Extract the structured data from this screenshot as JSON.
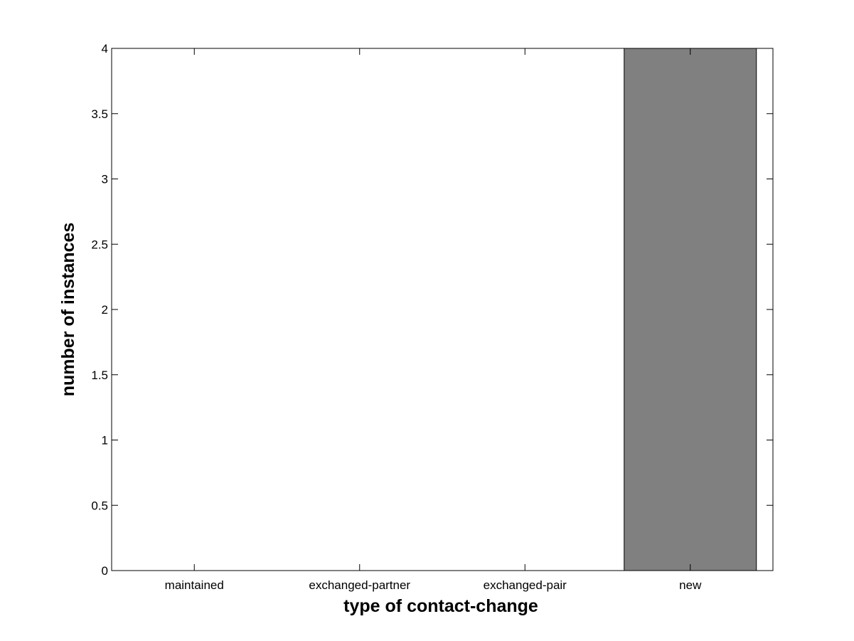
{
  "chart_data": {
    "type": "bar",
    "title": "",
    "xlabel": "type of contact-change",
    "ylabel": "number of instances",
    "categories": [
      "maintained",
      "exchanged-partner",
      "exchanged-pair",
      "new"
    ],
    "values": [
      0,
      0,
      0,
      4
    ],
    "ylim": [
      0,
      4
    ],
    "xlim": [
      0.5,
      4.5
    ],
    "yticks": [
      "0",
      "0.5",
      "1",
      "1.5",
      "2",
      "2.5",
      "3",
      "3.5",
      "4"
    ],
    "bar_color": "#808080",
    "grid": false,
    "legend": "none"
  }
}
